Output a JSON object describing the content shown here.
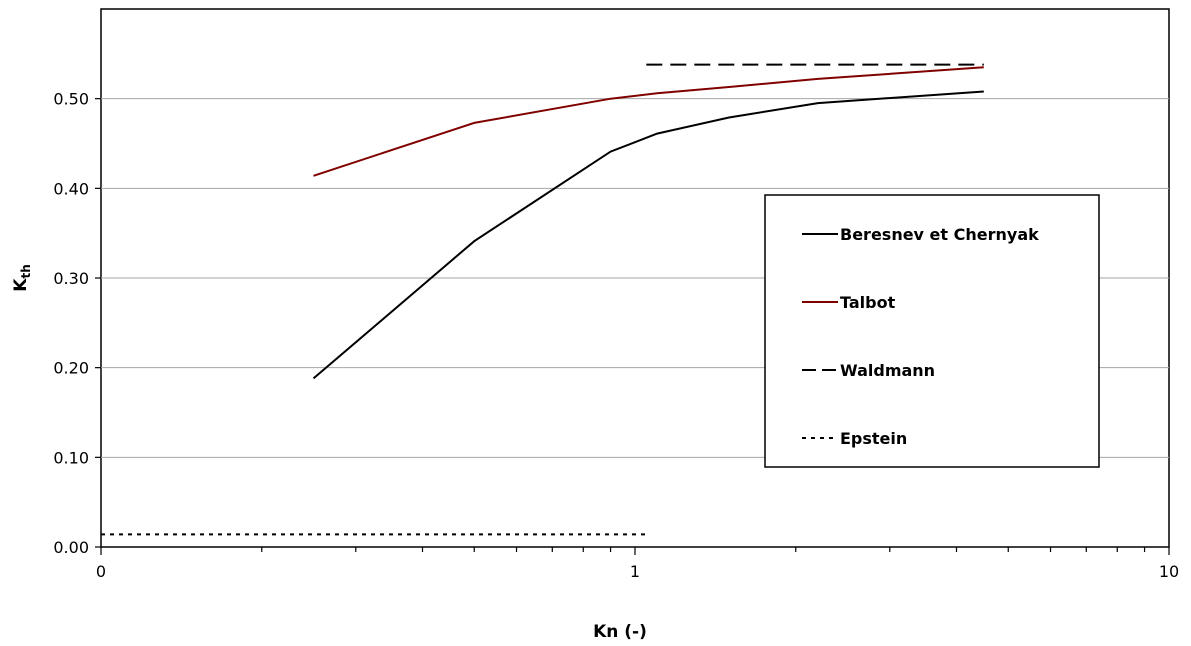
{
  "chart_data": {
    "type": "line",
    "title": "",
    "xlabel": "Kn (-)",
    "ylabel_main": "K",
    "ylabel_sub": "th",
    "xscale": "log",
    "xlim": [
      0.1,
      10
    ],
    "ylim": [
      0,
      0.6
    ],
    "yticks": [
      0.0,
      0.1,
      0.2,
      0.3,
      0.4,
      0.5
    ],
    "ytick_labels": [
      "0.00",
      "0.10",
      "0.20",
      "0.30",
      "0.40",
      "0.50"
    ],
    "xticks": [
      0.1,
      1,
      10
    ],
    "xtick_labels": [
      "0",
      "1",
      "10"
    ],
    "grid": "horizontal",
    "legend_position": "right",
    "series": [
      {
        "name": "Beresnev et Chernyak",
        "color": "#000000",
        "style": "solid",
        "x": [
          0.25,
          0.5,
          0.9,
          1.1,
          1.5,
          2.2,
          4.5
        ],
        "y": [
          0.188,
          0.341,
          0.441,
          0.461,
          0.479,
          0.495,
          0.508
        ]
      },
      {
        "name": "Talbot",
        "color": "#800000",
        "style": "solid",
        "x": [
          0.25,
          0.5,
          0.9,
          1.1,
          1.5,
          2.2,
          4.5
        ],
        "y": [
          0.414,
          0.473,
          0.5,
          0.506,
          0.513,
          0.522,
          0.535
        ]
      },
      {
        "name": "Waldmann",
        "color": "#000000",
        "style": "dashed",
        "x": [
          1.05,
          4.5
        ],
        "y": [
          0.538,
          0.538
        ]
      },
      {
        "name": "Epstein",
        "color": "#000000",
        "style": "dotted",
        "x": [
          0.1,
          1.05
        ],
        "y": [
          0.014,
          0.014
        ]
      }
    ]
  }
}
